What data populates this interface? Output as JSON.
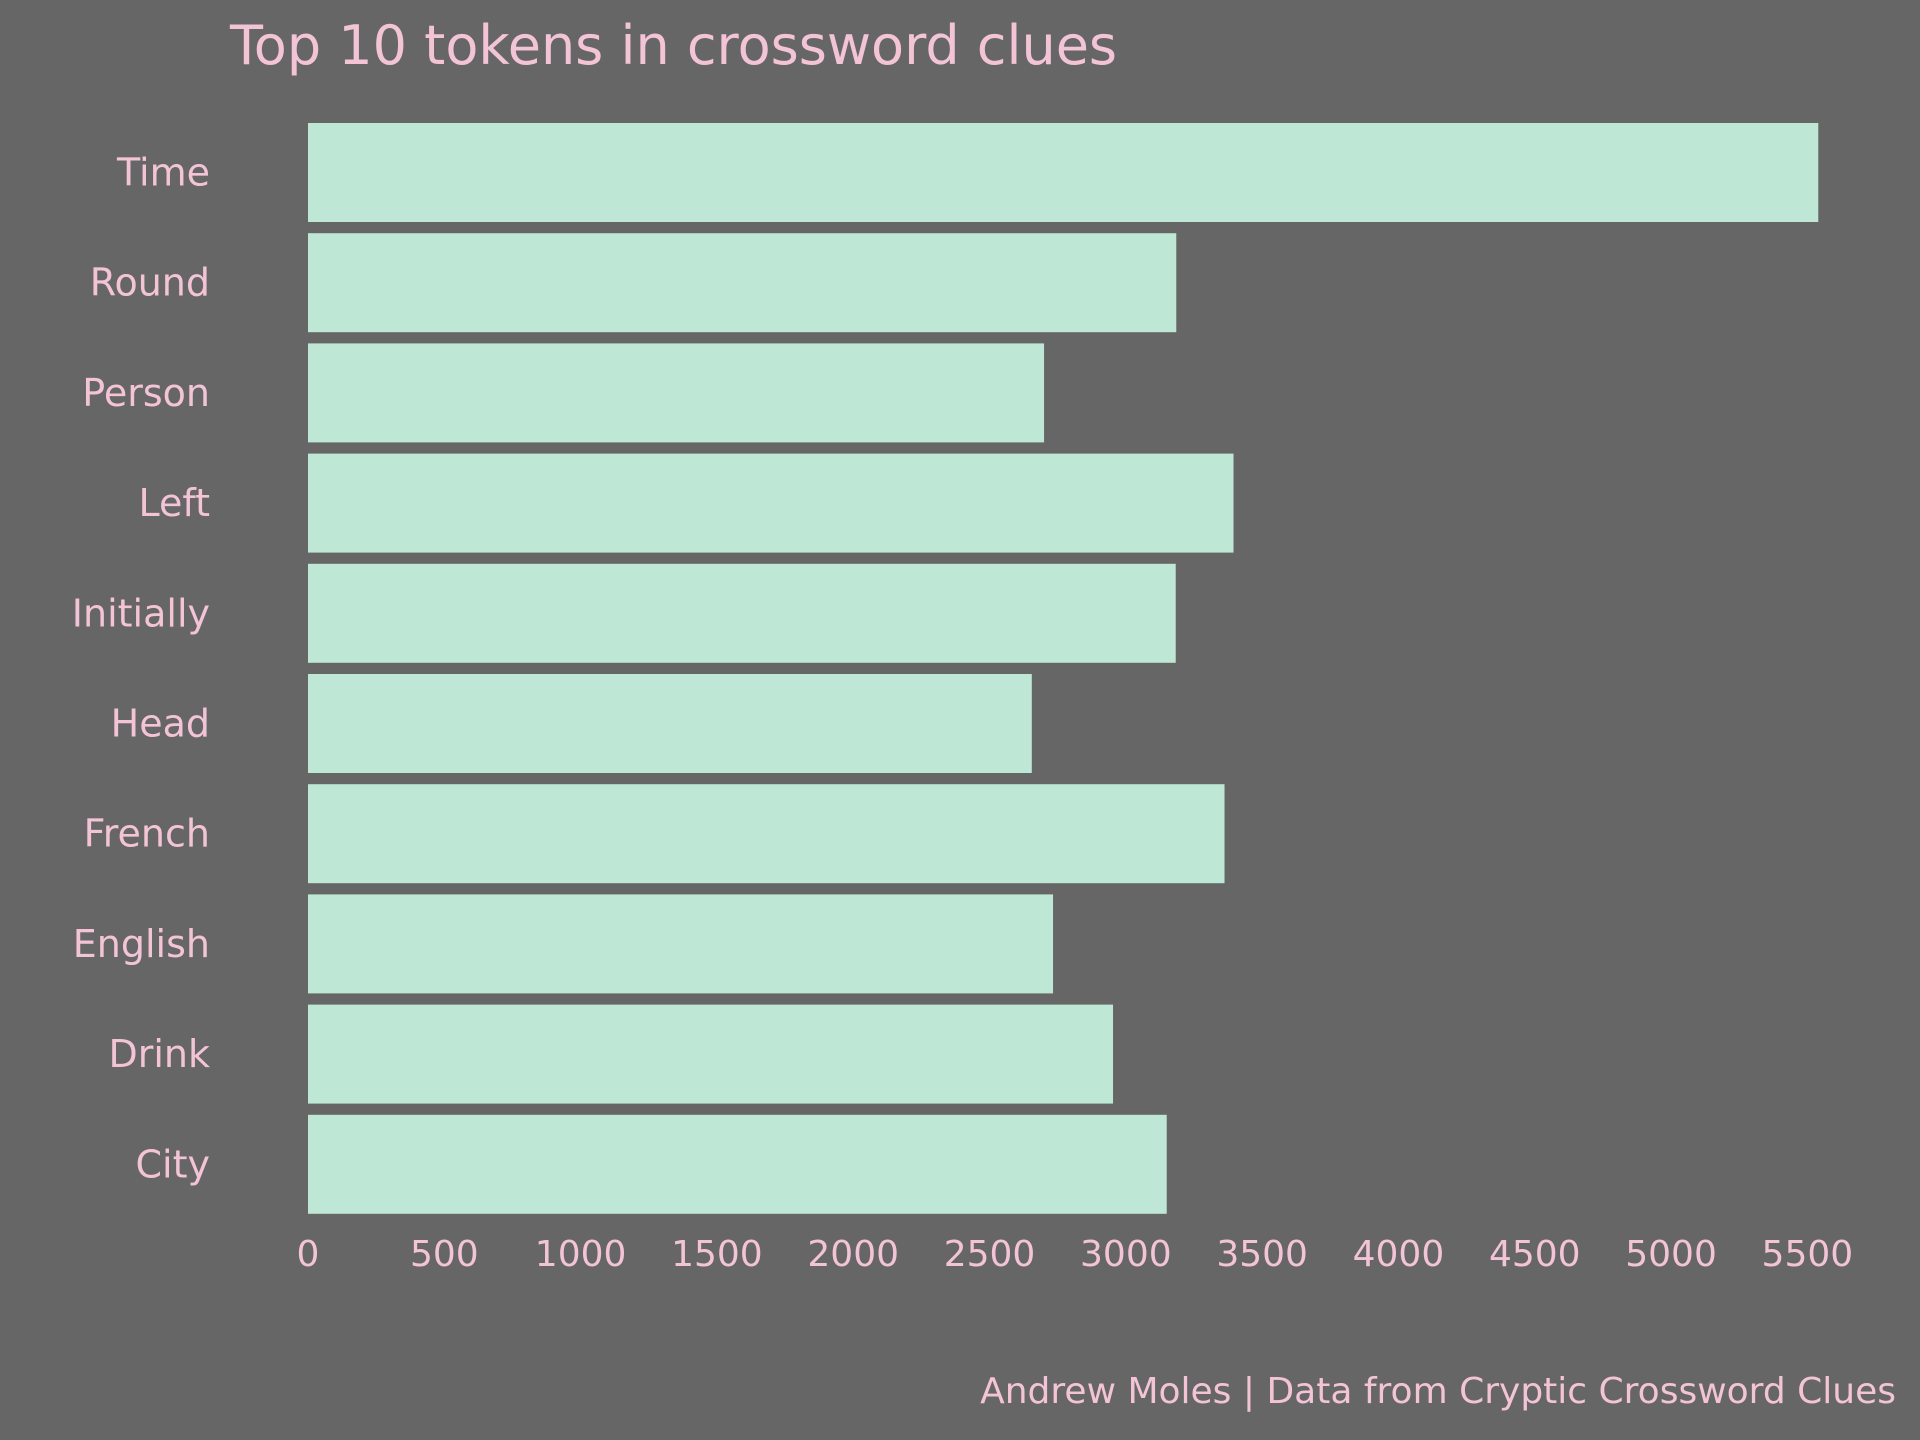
{
  "chart_data": {
    "type": "bar",
    "orientation": "horizontal",
    "title": "Top 10 tokens in crossword clues",
    "caption": "Andrew Moles | Data from Cryptic Crossword Clues",
    "categories": [
      "Time",
      "Round",
      "Person",
      "Left",
      "Initially",
      "Head",
      "French",
      "English",
      "Drink",
      "City"
    ],
    "values": [
      5540,
      3185,
      2700,
      3395,
      3183,
      2655,
      3362,
      2733,
      2953,
      3150
    ],
    "xlabel": "",
    "ylabel": "",
    "xlim": [
      0,
      5650
    ],
    "xticks": [
      0,
      500,
      1000,
      1500,
      2000,
      2500,
      3000,
      3500,
      4000,
      4500,
      5000,
      5500
    ],
    "grid": false,
    "legend": "none",
    "colors": {
      "background": "#666666",
      "bar": "#bee8d5",
      "text": "#f2c4d6"
    }
  }
}
